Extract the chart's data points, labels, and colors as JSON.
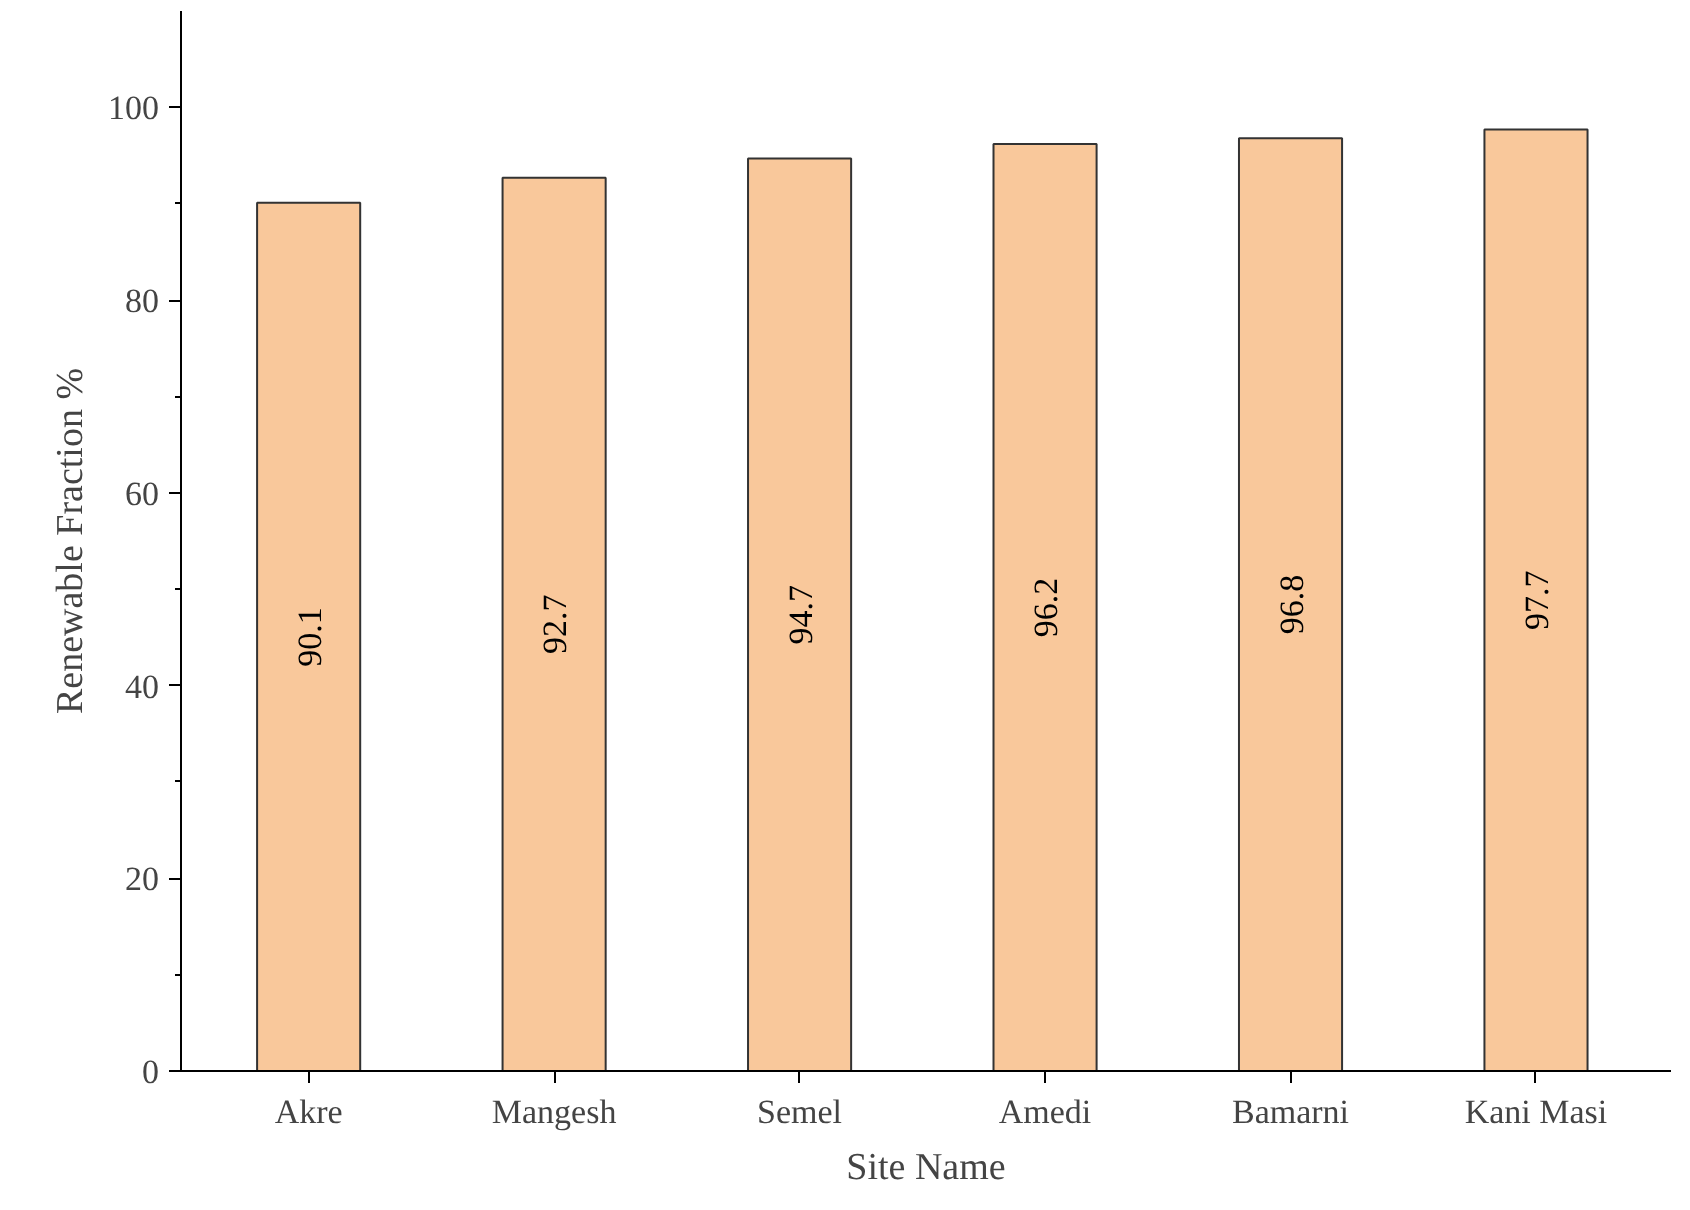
{
  "chart_data": {
    "type": "bar",
    "xlabel": "Site Name",
    "ylabel": "Renewable Fraction %",
    "categories": [
      "Akre",
      "Mangesh",
      "Semel",
      "Amedi",
      "Bamarni",
      "Kani Masi"
    ],
    "values": [
      90.1,
      92.7,
      94.7,
      96.2,
      96.8,
      97.7
    ],
    "color": "#f9c89b",
    "ylim": [
      0,
      110
    ],
    "yticks": [
      0,
      20,
      40,
      60,
      80,
      100
    ],
    "data_labels": true,
    "grid": false
  }
}
